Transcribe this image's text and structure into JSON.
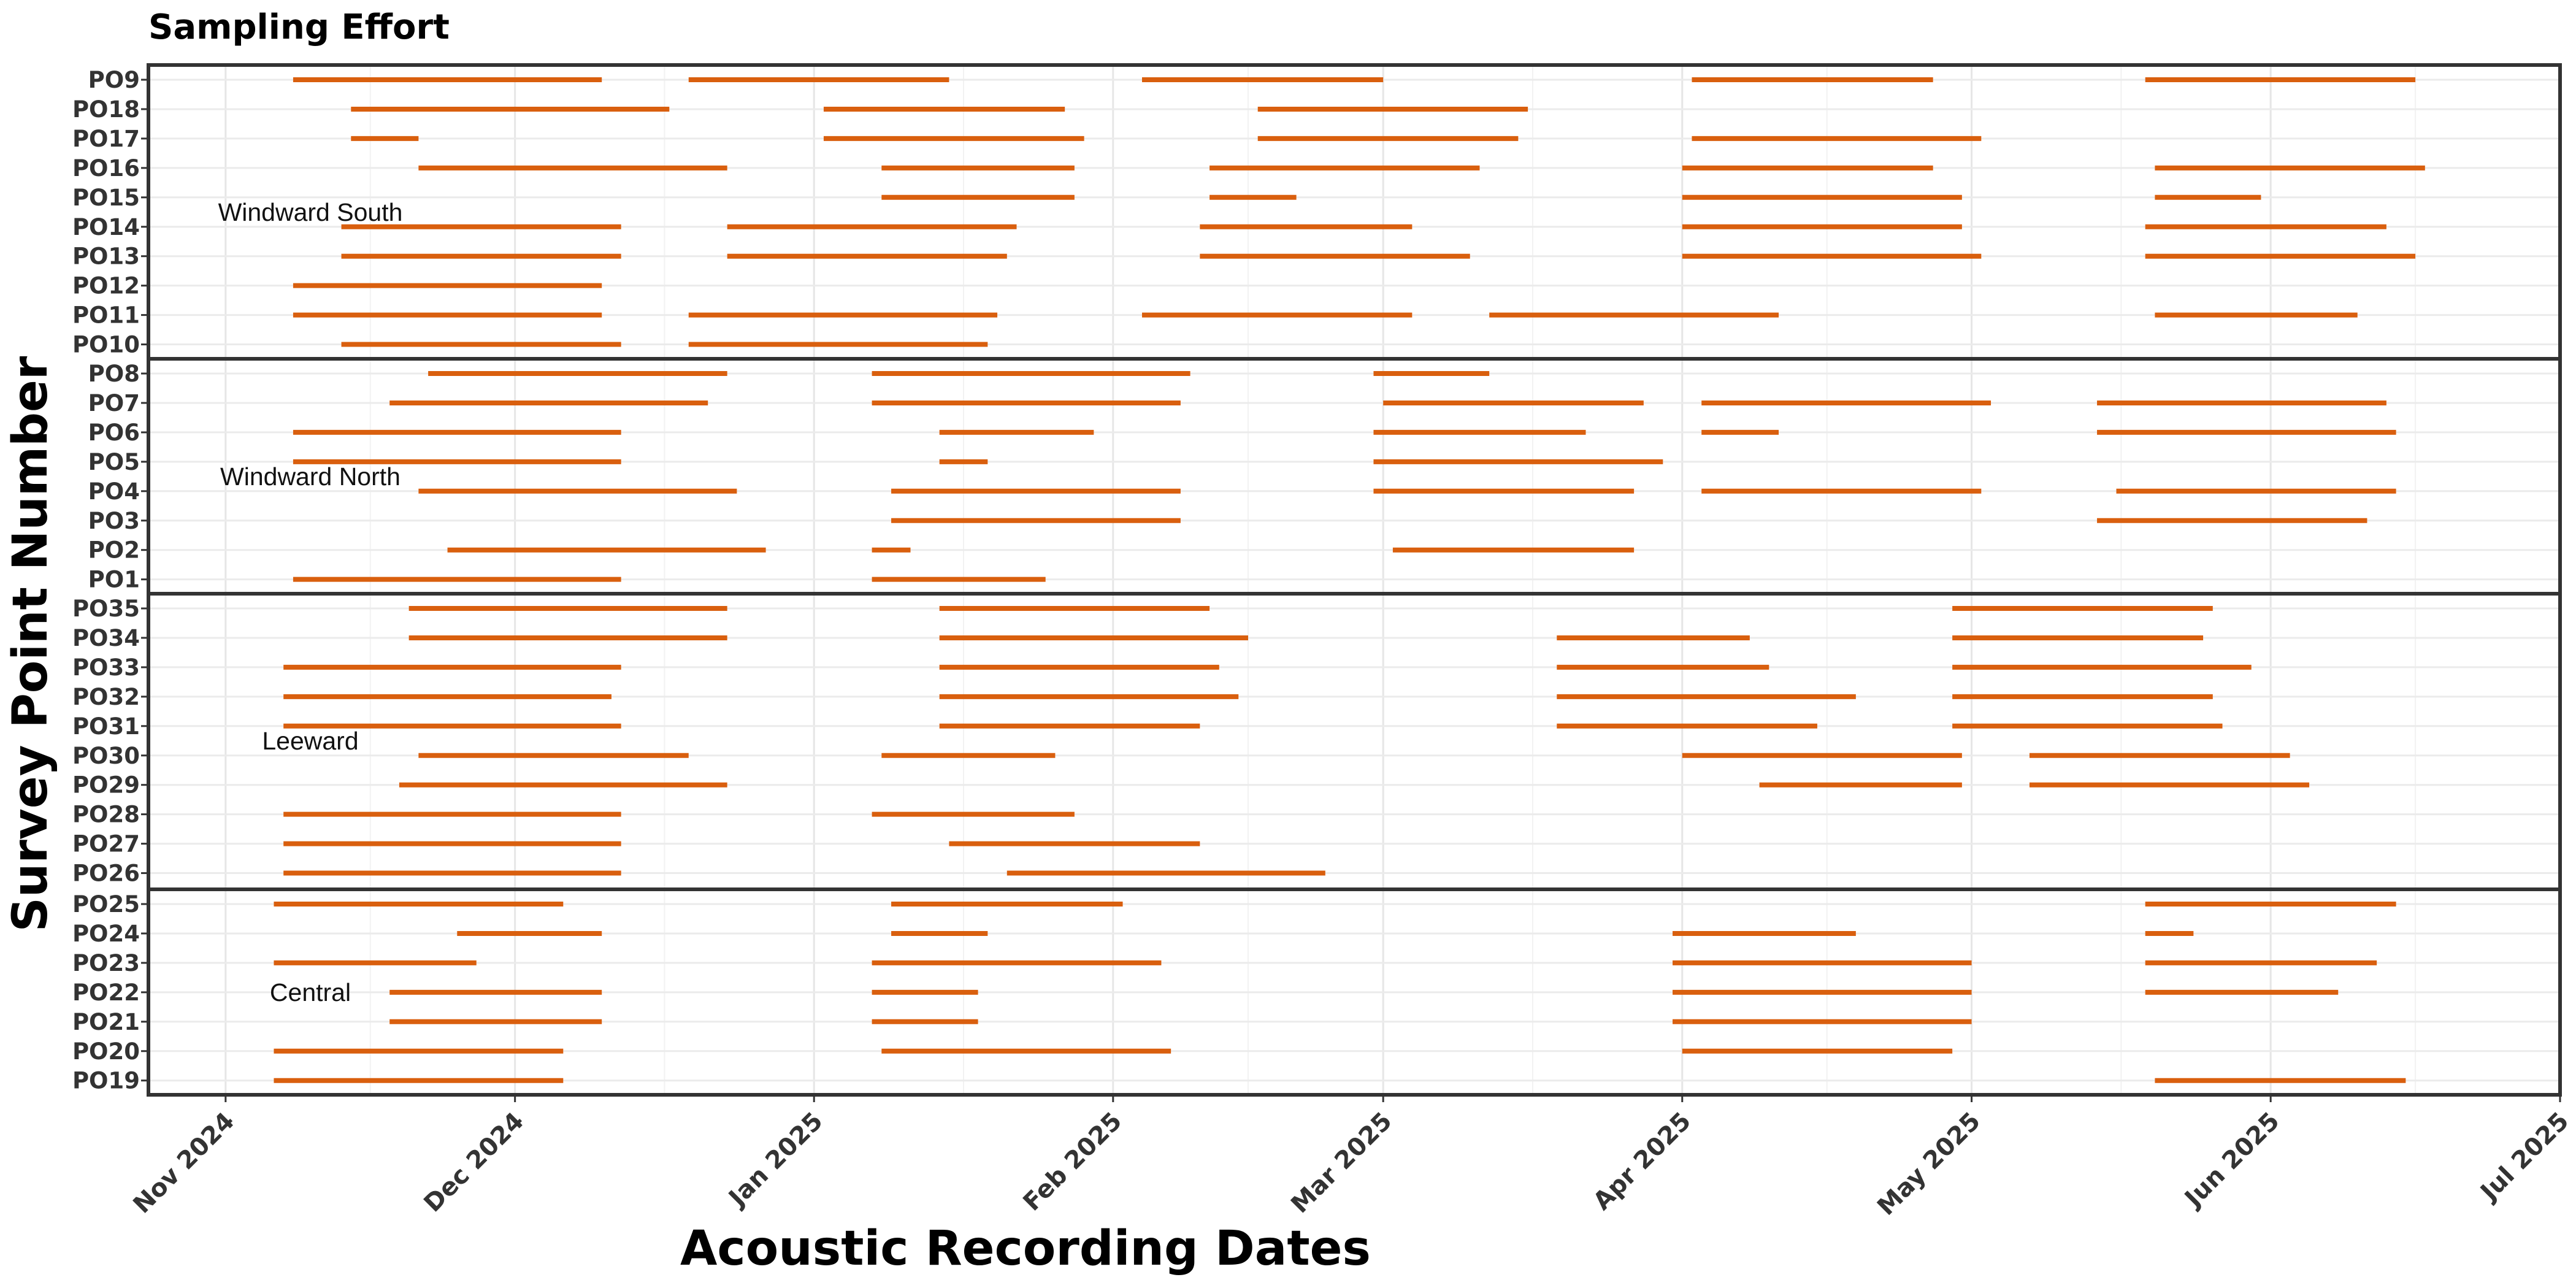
{
  "chart_data": {
    "type": "timeline",
    "title": "Sampling Effort",
    "xlabel": "Acoustic Recording Dates",
    "ylabel": "Survey Point Number",
    "xlim": [
      "2024-10-24",
      "2025-07-01"
    ],
    "x_ticks": [
      {
        "date": "2024-11-01",
        "label": "Nov 2024"
      },
      {
        "date": "2024-12-01",
        "label": "Dec 2024"
      },
      {
        "date": "2025-01-01",
        "label": "Jan 2025"
      },
      {
        "date": "2025-02-01",
        "label": "Feb 2025"
      },
      {
        "date": "2025-03-01",
        "label": "Mar 2025"
      },
      {
        "date": "2025-04-01",
        "label": "Apr 2025"
      },
      {
        "date": "2025-05-01",
        "label": "May 2025"
      },
      {
        "date": "2025-06-01",
        "label": "Jun 2025"
      },
      {
        "date": "2025-07-01",
        "label": "Jul 2025"
      }
    ],
    "grid": true,
    "bar_color": "#D95F0E",
    "groups": [
      {
        "name": "Windward South",
        "points": [
          {
            "id": "PO9",
            "intervals": [
              [
                "2024-11-08",
                "2024-12-10"
              ],
              [
                "2024-12-19",
                "2025-01-15"
              ],
              [
                "2025-02-04",
                "2025-03-01"
              ],
              [
                "2025-04-02",
                "2025-04-27"
              ],
              [
                "2025-05-19",
                "2025-06-16"
              ]
            ]
          },
          {
            "id": "PO18",
            "intervals": [
              [
                "2024-11-14",
                "2024-12-17"
              ],
              [
                "2025-01-02",
                "2025-01-27"
              ],
              [
                "2025-02-16",
                "2025-03-16"
              ]
            ]
          },
          {
            "id": "PO17",
            "intervals": [
              [
                "2024-11-14",
                "2024-11-21"
              ],
              [
                "2025-01-02",
                "2025-01-29"
              ],
              [
                "2025-02-16",
                "2025-03-15"
              ],
              [
                "2025-04-02",
                "2025-05-02"
              ]
            ]
          },
          {
            "id": "PO16",
            "intervals": [
              [
                "2024-11-21",
                "2024-12-23"
              ],
              [
                "2025-01-08",
                "2025-01-28"
              ],
              [
                "2025-02-11",
                "2025-03-11"
              ],
              [
                "2025-04-01",
                "2025-04-27"
              ],
              [
                "2025-05-20",
                "2025-06-17"
              ]
            ]
          },
          {
            "id": "PO15",
            "intervals": [
              [
                "2025-01-08",
                "2025-01-28"
              ],
              [
                "2025-02-11",
                "2025-02-20"
              ],
              [
                "2025-04-01",
                "2025-04-30"
              ],
              [
                "2025-05-20",
                "2025-05-31"
              ]
            ]
          },
          {
            "id": "PO14",
            "intervals": [
              [
                "2024-11-13",
                "2024-12-12"
              ],
              [
                "2024-12-23",
                "2025-01-22"
              ],
              [
                "2025-02-10",
                "2025-03-04"
              ],
              [
                "2025-04-01",
                "2025-04-30"
              ],
              [
                "2025-05-19",
                "2025-06-13"
              ]
            ]
          },
          {
            "id": "PO13",
            "intervals": [
              [
                "2024-11-13",
                "2024-12-12"
              ],
              [
                "2024-12-23",
                "2025-01-21"
              ],
              [
                "2025-02-10",
                "2025-03-10"
              ],
              [
                "2025-04-01",
                "2025-05-02"
              ],
              [
                "2025-05-19",
                "2025-06-16"
              ]
            ]
          },
          {
            "id": "PO12",
            "intervals": [
              [
                "2024-11-08",
                "2024-12-10"
              ]
            ]
          },
          {
            "id": "PO11",
            "intervals": [
              [
                "2024-11-08",
                "2024-12-10"
              ],
              [
                "2024-12-19",
                "2025-01-20"
              ],
              [
                "2025-02-04",
                "2025-03-04"
              ],
              [
                "2025-03-12",
                "2025-04-11"
              ],
              [
                "2025-05-20",
                "2025-06-10"
              ]
            ]
          },
          {
            "id": "PO10",
            "intervals": [
              [
                "2024-11-13",
                "2024-12-12"
              ],
              [
                "2024-12-19",
                "2025-01-19"
              ]
            ]
          }
        ]
      },
      {
        "name": "Windward North",
        "points": [
          {
            "id": "PO8",
            "intervals": [
              [
                "2024-11-22",
                "2024-12-23"
              ],
              [
                "2025-01-07",
                "2025-02-09"
              ],
              [
                "2025-02-28",
                "2025-03-12"
              ]
            ]
          },
          {
            "id": "PO7",
            "intervals": [
              [
                "2024-11-18",
                "2024-12-21"
              ],
              [
                "2025-01-07",
                "2025-02-08"
              ],
              [
                "2025-03-01",
                "2025-03-28"
              ],
              [
                "2025-04-03",
                "2025-05-03"
              ],
              [
                "2025-05-14",
                "2025-06-13"
              ]
            ]
          },
          {
            "id": "PO6",
            "intervals": [
              [
                "2024-11-08",
                "2024-12-12"
              ],
              [
                "2025-01-14",
                "2025-01-30"
              ],
              [
                "2025-02-28",
                "2025-03-22"
              ],
              [
                "2025-04-03",
                "2025-04-11"
              ],
              [
                "2025-05-14",
                "2025-06-14"
              ]
            ]
          },
          {
            "id": "PO5",
            "intervals": [
              [
                "2024-11-08",
                "2024-12-12"
              ],
              [
                "2025-01-14",
                "2025-01-19"
              ],
              [
                "2025-02-28",
                "2025-03-30"
              ]
            ]
          },
          {
            "id": "PO4",
            "intervals": [
              [
                "2024-11-21",
                "2024-12-24"
              ],
              [
                "2025-01-09",
                "2025-02-08"
              ],
              [
                "2025-02-28",
                "2025-03-27"
              ],
              [
                "2025-04-03",
                "2025-05-02"
              ],
              [
                "2025-05-16",
                "2025-06-14"
              ]
            ]
          },
          {
            "id": "PO3",
            "intervals": [
              [
                "2025-01-09",
                "2025-02-08"
              ],
              [
                "2025-05-14",
                "2025-06-11"
              ]
            ]
          },
          {
            "id": "PO2",
            "intervals": [
              [
                "2024-11-24",
                "2024-12-27"
              ],
              [
                "2025-01-07",
                "2025-01-11"
              ],
              [
                "2025-03-02",
                "2025-03-27"
              ]
            ]
          },
          {
            "id": "PO1",
            "intervals": [
              [
                "2024-11-08",
                "2024-12-12"
              ],
              [
                "2025-01-07",
                "2025-01-25"
              ]
            ]
          }
        ]
      },
      {
        "name": "Leeward",
        "points": [
          {
            "id": "PO35",
            "intervals": [
              [
                "2024-11-20",
                "2024-12-23"
              ],
              [
                "2025-01-14",
                "2025-02-11"
              ],
              [
                "2025-04-29",
                "2025-05-26"
              ]
            ]
          },
          {
            "id": "PO34",
            "intervals": [
              [
                "2024-11-20",
                "2024-12-23"
              ],
              [
                "2025-01-14",
                "2025-02-15"
              ],
              [
                "2025-03-19",
                "2025-04-08"
              ],
              [
                "2025-04-29",
                "2025-05-25"
              ]
            ]
          },
          {
            "id": "PO33",
            "intervals": [
              [
                "2024-11-07",
                "2024-12-12"
              ],
              [
                "2025-01-14",
                "2025-02-12"
              ],
              [
                "2025-03-19",
                "2025-04-10"
              ],
              [
                "2025-04-29",
                "2025-05-30"
              ]
            ]
          },
          {
            "id": "PO32",
            "intervals": [
              [
                "2024-11-07",
                "2024-12-11"
              ],
              [
                "2025-01-14",
                "2025-02-14"
              ],
              [
                "2025-03-19",
                "2025-04-19"
              ],
              [
                "2025-04-29",
                "2025-05-26"
              ]
            ]
          },
          {
            "id": "PO31",
            "intervals": [
              [
                "2024-11-07",
                "2024-12-12"
              ],
              [
                "2025-01-14",
                "2025-02-10"
              ],
              [
                "2025-03-19",
                "2025-04-15"
              ],
              [
                "2025-04-29",
                "2025-05-27"
              ]
            ]
          },
          {
            "id": "PO30",
            "intervals": [
              [
                "2024-11-21",
                "2024-12-19"
              ],
              [
                "2025-01-08",
                "2025-01-26"
              ],
              [
                "2025-04-01",
                "2025-04-30"
              ],
              [
                "2025-05-07",
                "2025-06-03"
              ]
            ]
          },
          {
            "id": "PO29",
            "intervals": [
              [
                "2024-11-19",
                "2024-12-23"
              ],
              [
                "2025-04-09",
                "2025-04-30"
              ],
              [
                "2025-05-07",
                "2025-06-05"
              ]
            ]
          },
          {
            "id": "PO28",
            "intervals": [
              [
                "2024-11-07",
                "2024-12-12"
              ],
              [
                "2025-01-07",
                "2025-01-28"
              ]
            ]
          },
          {
            "id": "PO27",
            "intervals": [
              [
                "2024-11-07",
                "2024-12-12"
              ],
              [
                "2025-01-15",
                "2025-02-10"
              ]
            ]
          },
          {
            "id": "PO26",
            "intervals": [
              [
                "2024-11-07",
                "2024-12-12"
              ],
              [
                "2025-01-21",
                "2025-02-23"
              ]
            ]
          }
        ]
      },
      {
        "name": "Central",
        "points": [
          {
            "id": "PO25",
            "intervals": [
              [
                "2024-11-06",
                "2024-12-06"
              ],
              [
                "2025-01-09",
                "2025-02-02"
              ],
              [
                "2025-05-19",
                "2025-06-14"
              ]
            ]
          },
          {
            "id": "PO24",
            "intervals": [
              [
                "2024-11-25",
                "2024-12-10"
              ],
              [
                "2025-01-09",
                "2025-01-19"
              ],
              [
                "2025-03-31",
                "2025-04-19"
              ],
              [
                "2025-05-19",
                "2025-05-24"
              ]
            ]
          },
          {
            "id": "PO23",
            "intervals": [
              [
                "2024-11-06",
                "2024-11-27"
              ],
              [
                "2025-01-07",
                "2025-02-06"
              ],
              [
                "2025-03-31",
                "2025-05-01"
              ],
              [
                "2025-05-19",
                "2025-06-12"
              ]
            ]
          },
          {
            "id": "PO22",
            "intervals": [
              [
                "2024-11-18",
                "2024-12-10"
              ],
              [
                "2025-01-07",
                "2025-01-18"
              ],
              [
                "2025-03-31",
                "2025-05-01"
              ],
              [
                "2025-05-19",
                "2025-06-08"
              ]
            ]
          },
          {
            "id": "PO21",
            "intervals": [
              [
                "2024-11-18",
                "2024-12-10"
              ],
              [
                "2025-01-07",
                "2025-01-18"
              ],
              [
                "2025-03-31",
                "2025-05-01"
              ]
            ]
          },
          {
            "id": "PO20",
            "intervals": [
              [
                "2024-11-06",
                "2024-12-06"
              ],
              [
                "2025-01-08",
                "2025-02-07"
              ],
              [
                "2025-04-01",
                "2025-04-29"
              ]
            ]
          },
          {
            "id": "PO19",
            "intervals": [
              [
                "2024-11-06",
                "2024-12-06"
              ],
              [
                "2025-05-20",
                "2025-06-15"
              ]
            ]
          }
        ]
      }
    ]
  }
}
